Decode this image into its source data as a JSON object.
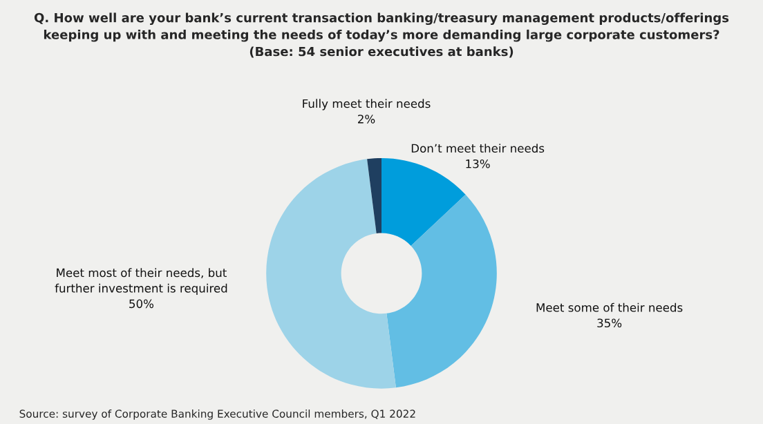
{
  "chart_data": {
    "type": "donut",
    "title": "Q. How well are your bank’s current transaction banking/treasury management products/offerings\nkeeping up with and meeting the needs of today’s more demanding large corporate customers?\n(Base: 54 senior executives at banks)",
    "categories": [
      "Don’t meet their needs",
      "Meet some of their needs",
      "Meet most of their needs, but\nfurther investment is required",
      "Fully meet their needs"
    ],
    "values": [
      13,
      35,
      50,
      2
    ],
    "value_labels": [
      "13%",
      "35%",
      "50%",
      "2%"
    ],
    "colors": [
      "#009ddc",
      "#62bee4",
      "#9dd3e8",
      "#1f3f60"
    ],
    "legend": false,
    "annotations": [
      "Source: survey of Corporate Banking Executive Council members, Q1 2022"
    ]
  }
}
